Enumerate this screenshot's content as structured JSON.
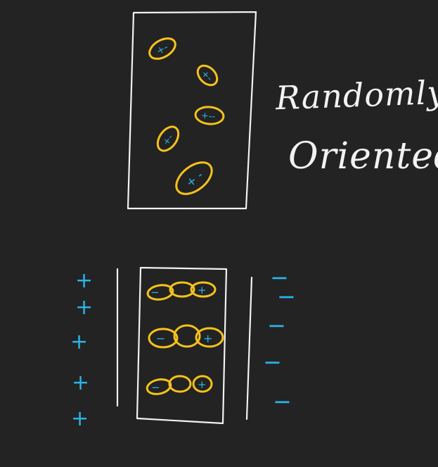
{
  "label": {
    "line1": "Randomly",
    "line2": "Oriented"
  },
  "colors": {
    "background": "#232323",
    "ink_white": "#f2f2f2",
    "molecule_yellow": "#f6c21c",
    "charge_blue": "#2ab3e6"
  },
  "left_plate_charge": "+",
  "right_plate_charge": "−"
}
